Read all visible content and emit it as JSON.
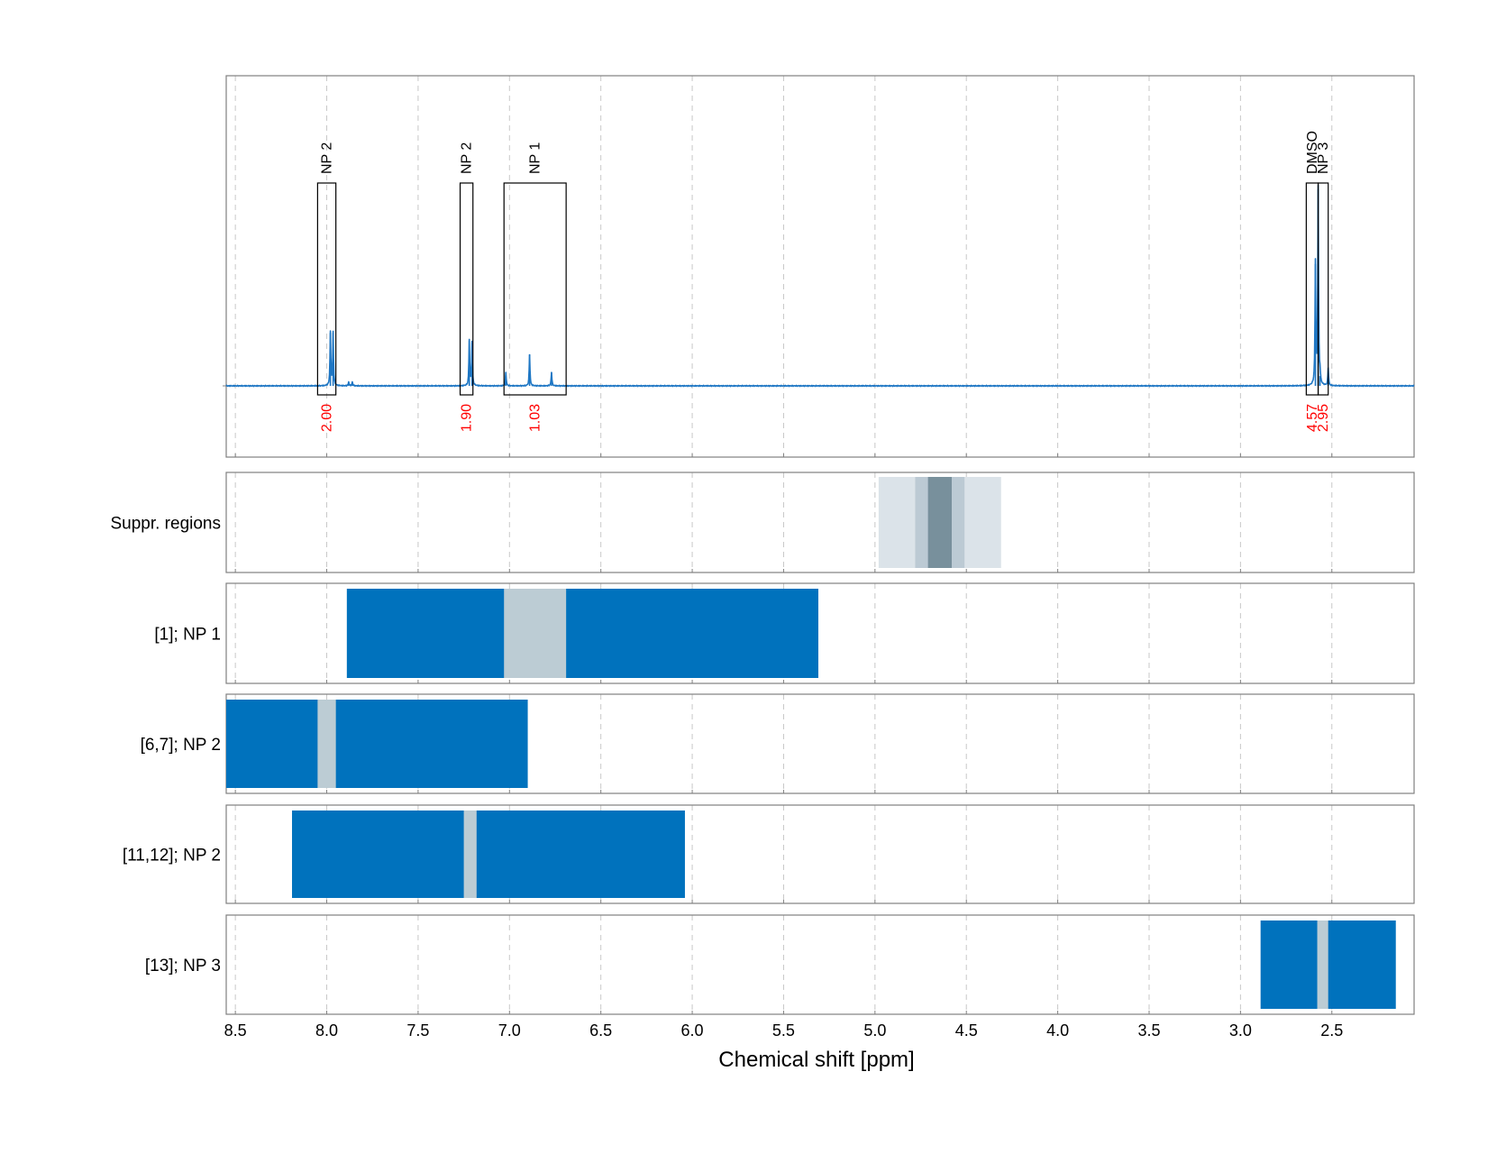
{
  "chart_data": {
    "type": "line",
    "xlabel": "Chemical shift [ppm]",
    "xlim": [
      8.55,
      2.05
    ],
    "x_reversed": true,
    "x_ticks": [
      8.5,
      8.0,
      7.5,
      7.0,
      6.5,
      6.0,
      5.5,
      5.0,
      4.5,
      4.0,
      3.5,
      3.0,
      2.5
    ],
    "x_tick_labels": [
      "8.5",
      "8.0",
      "7.5",
      "7.0",
      "6.5",
      "6.0",
      "5.5",
      "5.0",
      "4.5",
      "4.0",
      "3.5",
      "3.0",
      "2.5"
    ],
    "grid": "vertical dashed",
    "colors": {
      "spectrum": "#1f77c4",
      "integral_label": "#ff0000",
      "region_box": "#000000",
      "bar_fill": "#0072bd",
      "bar_highlight": "#bcccd4",
      "suppr_light": "#dbe3e9",
      "suppr_mid": "#bccad4",
      "suppr_dark": "#78909c",
      "grid": "#c8c8c8",
      "frame": "#808080"
    },
    "spectrum": {
      "name": "",
      "baseline": 0,
      "y_max": 1.0,
      "peaks": [
        {
          "ppm": 7.98,
          "height": 0.27
        },
        {
          "ppm": 7.965,
          "height": 0.27
        },
        {
          "ppm": 7.88,
          "height": 0.02
        },
        {
          "ppm": 7.86,
          "height": 0.02
        },
        {
          "ppm": 7.22,
          "height": 0.23
        },
        {
          "ppm": 7.205,
          "height": 0.22
        },
        {
          "ppm": 7.02,
          "height": 0.07
        },
        {
          "ppm": 6.89,
          "height": 0.16
        },
        {
          "ppm": 6.77,
          "height": 0.07
        },
        {
          "ppm": 2.59,
          "height": 0.62
        },
        {
          "ppm": 2.575,
          "height": 1.0
        },
        {
          "ppm": 2.565,
          "height": 0.05
        },
        {
          "ppm": 2.52,
          "height": 0.09
        }
      ]
    },
    "regions": [
      {
        "label": "NP 2",
        "integral": "2.00",
        "x_from": 8.05,
        "x_to": 7.95
      },
      {
        "label": "NP 2",
        "integral": "1.90",
        "x_from": 7.27,
        "x_to": 7.2
      },
      {
        "label": "NP 1",
        "integral": "1.03",
        "x_from": 7.03,
        "x_to": 6.69
      },
      {
        "label": "DMSO",
        "integral": "4.57",
        "x_from": 2.64,
        "x_to": 2.575
      },
      {
        "label": "NP 3",
        "integral": "2.95",
        "x_from": 2.575,
        "x_to": 2.52
      }
    ],
    "suppression": {
      "label": "Suppr. regions",
      "bands": [
        {
          "x_from": 4.98,
          "x_to": 4.31,
          "shade": "light"
        },
        {
          "x_from": 4.78,
          "x_to": 4.51,
          "shade": "mid"
        },
        {
          "x_from": 4.71,
          "x_to": 4.58,
          "shade": "dark"
        }
      ]
    },
    "bar_rows": [
      {
        "label": "[1]; NP 1",
        "range": [
          7.89,
          5.31
        ],
        "highlight": [
          7.03,
          6.69
        ]
      },
      {
        "label": "[6,7]; NP 2",
        "range": [
          8.55,
          6.9
        ],
        "highlight": [
          8.05,
          7.95
        ]
      },
      {
        "label": "[11,12]; NP 2",
        "range": [
          8.19,
          6.04
        ],
        "highlight": [
          7.25,
          7.18
        ]
      },
      {
        "label": "[13]; NP 3",
        "range": [
          2.89,
          2.15
        ],
        "highlight": [
          2.58,
          2.52
        ]
      }
    ]
  }
}
